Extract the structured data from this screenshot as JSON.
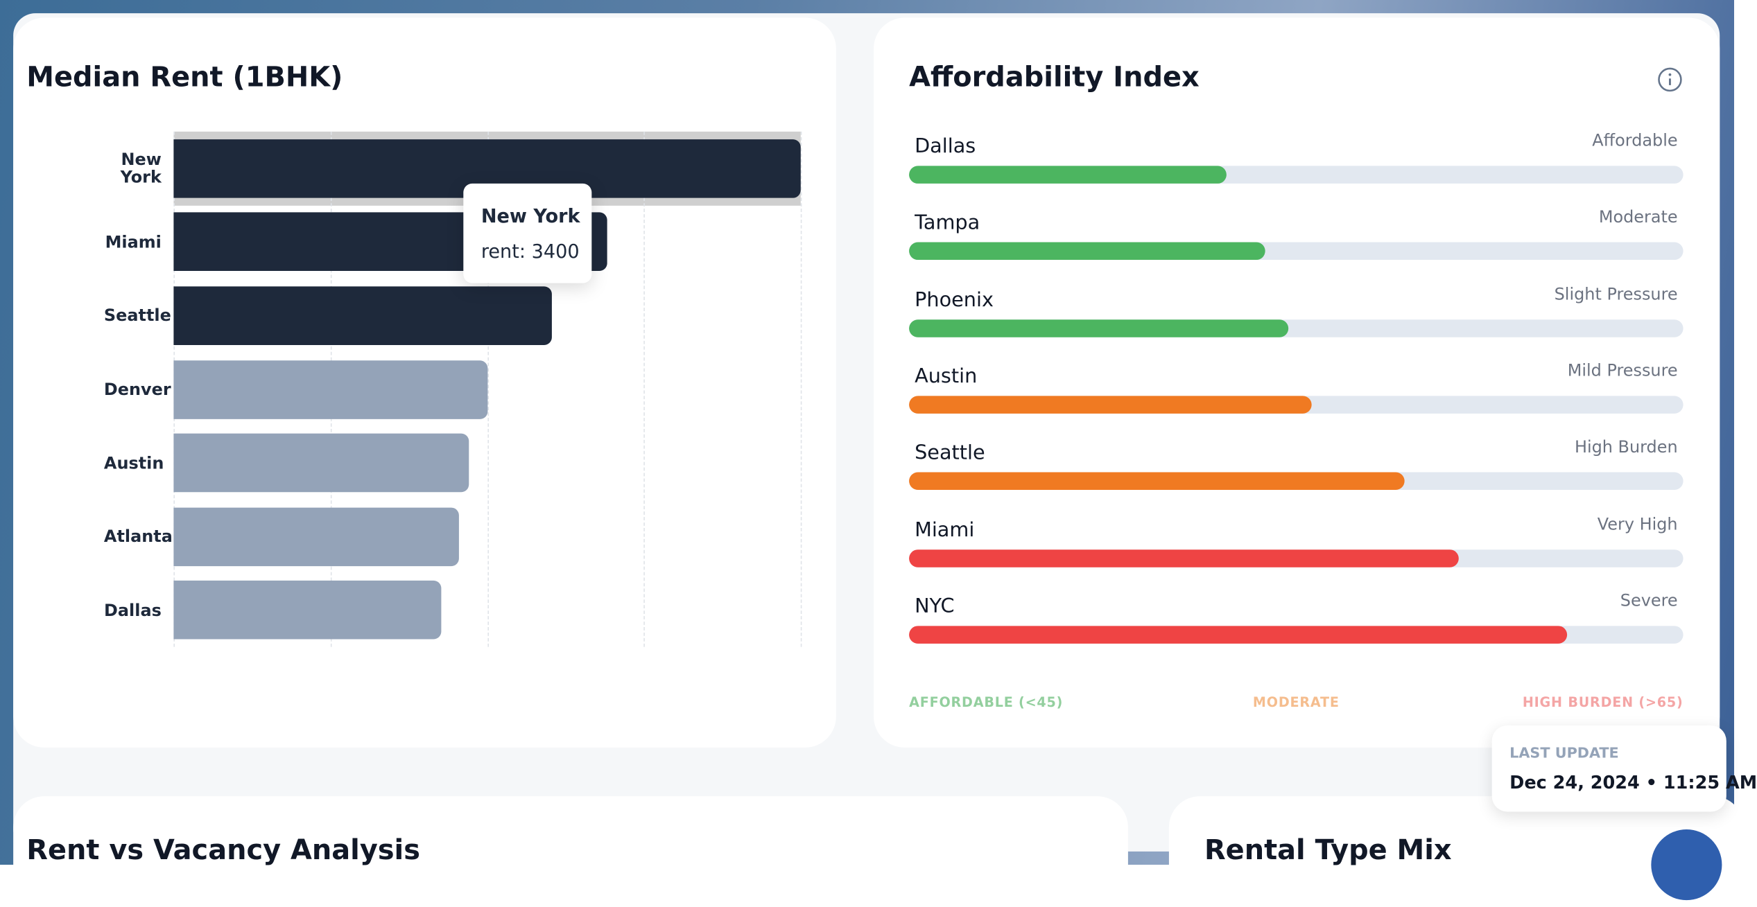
{
  "chart_data": [
    {
      "type": "bar",
      "orientation": "horizontal",
      "title": "Median Rent (1BHK)",
      "categories": [
        "New York",
        "Miami",
        "Seattle",
        "Denver",
        "Austin",
        "Atlanta",
        "Dallas"
      ],
      "values": [
        3400,
        2350,
        2050,
        1700,
        1600,
        1550,
        1450
      ],
      "colors": [
        "#1e293b",
        "#1e293b",
        "#1e293b",
        "#94a3b8",
        "#94a3b8",
        "#94a3b8",
        "#94a3b8"
      ],
      "xlim": [
        0,
        3400
      ],
      "xticks": [
        0,
        850,
        1700,
        2550,
        3400
      ],
      "grid": true,
      "show_tick_labels": false,
      "active": 0,
      "tooltip": {
        "title": "New York",
        "text": "rent: 3400"
      }
    },
    {
      "type": "progress",
      "title": "Affordability Index",
      "categories": [
        "Dallas",
        "Tampa",
        "Phoenix",
        "Austin",
        "Seattle",
        "Miami",
        "NYC"
      ],
      "values": [
        41,
        46,
        49,
        52,
        64,
        71,
        85
      ],
      "status": [
        "Affordable",
        "Moderate",
        "Slight Pressure",
        "Mild Pressure",
        "High Burden",
        "Very High",
        "Severe"
      ],
      "colors": [
        "#4cb560",
        "#4cb560",
        "#4cb560",
        "#f07a22",
        "#f07a22",
        "#ef4444",
        "#ef4444"
      ],
      "xlim": [
        0,
        100
      ],
      "legend": [
        "AFFORDABLE (<45)",
        "MODERATE",
        "HIGH BURDEN (>65)"
      ],
      "legend_colors": [
        "#93cf9e",
        "#f5bd8e",
        "#f4a5a5"
      ]
    }
  ],
  "last_update": {
    "label": "LAST UPDATE",
    "value": "Dec 24, 2024 • 11:25 AM"
  },
  "bottom_cards": [
    "Rent vs Vacancy Analysis",
    "Rental Type Mix"
  ]
}
